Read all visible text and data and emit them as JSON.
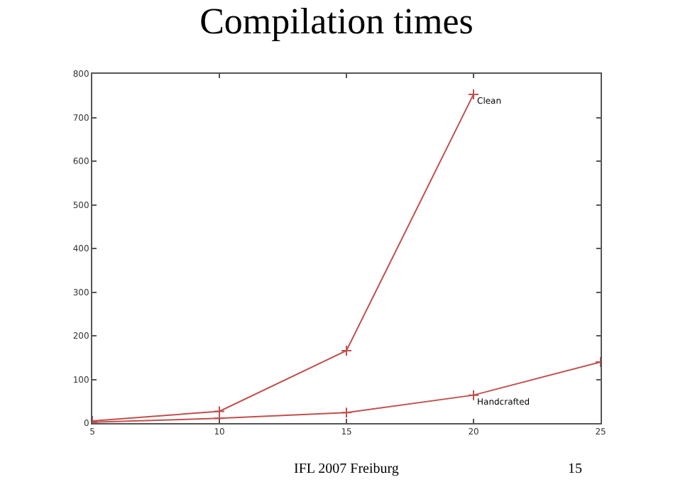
{
  "chart_data": {
    "type": "line",
    "title": "Compilation times",
    "x": [
      5,
      10,
      15,
      20,
      25
    ],
    "series": [
      {
        "name": "Clean",
        "color": "#c0504d",
        "values": [
          5,
          27,
          166,
          753,
          null
        ]
      },
      {
        "name": "Handcrafted",
        "color": "#c0504d",
        "values": [
          2,
          11,
          24,
          64,
          140
        ]
      }
    ],
    "xlim": [
      5,
      25
    ],
    "xticks": [
      5,
      10,
      15,
      20,
      25
    ],
    "ylim": [
      0,
      800
    ],
    "yticks": [
      0,
      100,
      200,
      300,
      400,
      500,
      600,
      700,
      800
    ],
    "legend": false,
    "marker": "cross",
    "line_style": "solid",
    "annotations": [
      "IFL 2007 Freiburg",
      "15"
    ]
  }
}
